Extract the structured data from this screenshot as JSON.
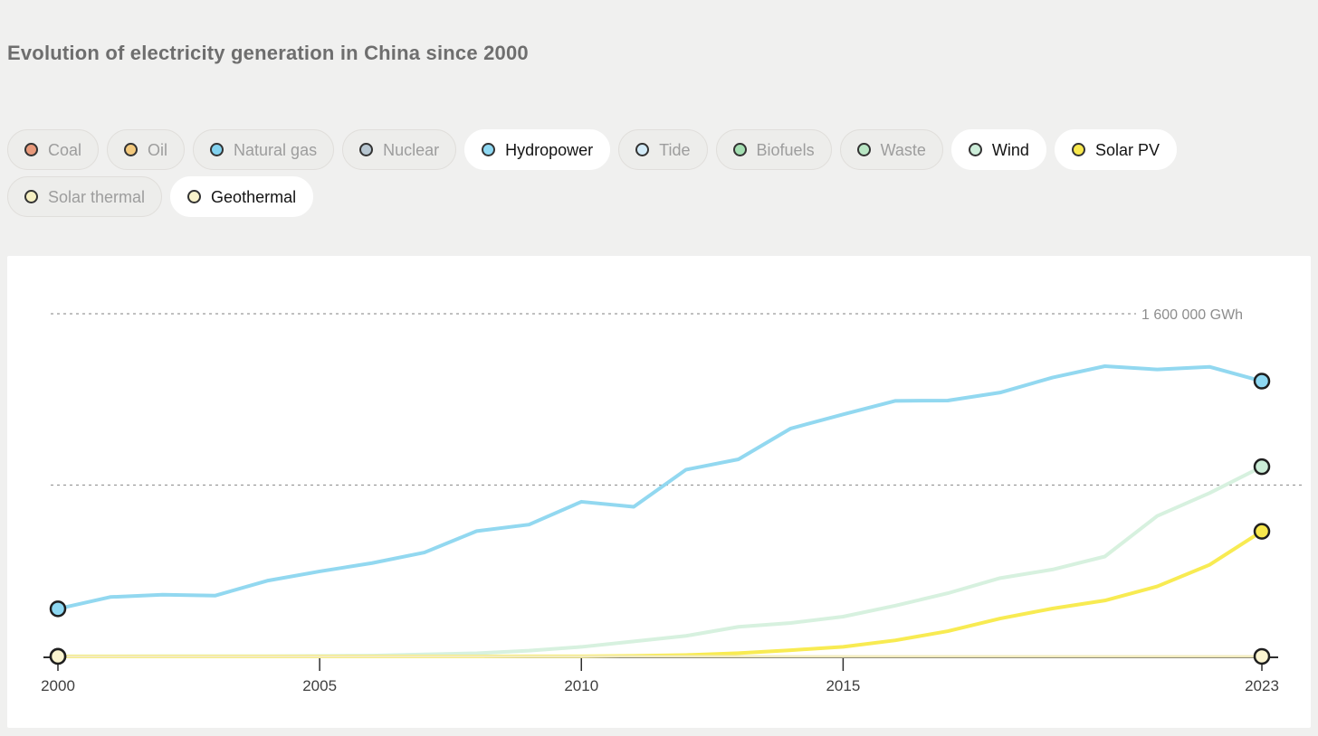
{
  "page": {
    "title": "Evolution of electricity generation in China since 2000"
  },
  "legend": {
    "items": [
      {
        "id": "coal",
        "label": "Coal",
        "active": false,
        "color": "#e8997b"
      },
      {
        "id": "oil",
        "label": "Oil",
        "active": false,
        "color": "#f3c97d"
      },
      {
        "id": "natural-gas",
        "label": "Natural gas",
        "active": false,
        "color": "#82d2ef"
      },
      {
        "id": "nuclear",
        "label": "Nuclear",
        "active": false,
        "color": "#b7c6d1"
      },
      {
        "id": "hydropower",
        "label": "Hydropower",
        "active": true,
        "color": "#8ed8f2"
      },
      {
        "id": "tide",
        "label": "Tide",
        "active": false,
        "color": "#d3ebf8"
      },
      {
        "id": "biofuels",
        "label": "Biofuels",
        "active": false,
        "color": "#a3deb1"
      },
      {
        "id": "waste",
        "label": "Waste",
        "active": false,
        "color": "#b9e6c4"
      },
      {
        "id": "wind",
        "label": "Wind",
        "active": true,
        "color": "#cdeeda"
      },
      {
        "id": "solar-pv",
        "label": "Solar PV",
        "active": true,
        "color": "#f8e84d"
      },
      {
        "id": "solar-thermal",
        "label": "Solar thermal",
        "active": false,
        "color": "#f5efc2"
      },
      {
        "id": "geothermal",
        "label": "Geothermal",
        "active": true,
        "color": "#f9f3cb"
      }
    ]
  },
  "chart_data": {
    "type": "line",
    "title": "Evolution of electricity generation in China since 2000",
    "unit": "GWh",
    "xlabel": "",
    "ylabel": "GWh",
    "x": [
      2000,
      2001,
      2002,
      2003,
      2004,
      2005,
      2006,
      2007,
      2008,
      2009,
      2010,
      2011,
      2012,
      2013,
      2014,
      2015,
      2016,
      2017,
      2018,
      2019,
      2020,
      2021,
      2022,
      2023
    ],
    "x_ticks": [
      2000,
      2005,
      2010,
      2015,
      2023
    ],
    "xlim": [
      2000,
      2023
    ],
    "ylim": [
      0,
      1870000
    ],
    "grid": "dashed-horizontal",
    "gridlines": [
      {
        "value": 1600000,
        "label": "1 600 000 GWh"
      },
      {
        "value": 800000,
        "label": ""
      }
    ],
    "legend_position": "top-pills",
    "series": [
      {
        "name": "Hydropower",
        "id": "hydropower",
        "line_color": "#92d8f0",
        "marker_color": "#8ed8f2",
        "line_width": 4,
        "values": [
          222400,
          277400,
          288000,
          283700,
          353500,
          397000,
          435800,
          485300,
          585200,
          615600,
          722200,
          698900,
          872100,
          920300,
          1064300,
          1130300,
          1193400,
          1194700,
          1232100,
          1302200,
          1355200,
          1340000,
          1352200,
          1285300
        ]
      },
      {
        "name": "Wind",
        "id": "wind",
        "line_color": "#d7f1df",
        "marker_color": "#cbedd7",
        "line_width": 4,
        "values": [
          615,
          720,
          810,
          1000,
          1290,
          2030,
          3870,
          9400,
          14800,
          26900,
          44620,
          70330,
          95980,
          138280,
          156080,
          185770,
          237070,
          295030,
          365800,
          405700,
          466500,
          655600,
          762700,
          885870
        ]
      },
      {
        "name": "Solar PV",
        "id": "solar-pv",
        "line_color": "#f8eb52",
        "marker_color": "#f8e84d",
        "line_width": 4,
        "values": [
          19,
          27,
          40,
          52,
          65,
          73,
          100,
          150,
          250,
          400,
          700,
          2600,
          6340,
          15450,
          29200,
          44780,
          75260,
          117840,
          176900,
          223800,
          261100,
          327000,
          427700,
          584200
        ]
      },
      {
        "name": "Geothermal",
        "id": "geothermal",
        "line_color": "#f3ecc0",
        "marker_color": "#faf4d0",
        "line_width": 3,
        "values": [
          100,
          100,
          100,
          100,
          100,
          100,
          100,
          100,
          100,
          150,
          150,
          150,
          150,
          150,
          150,
          150,
          150,
          150,
          150,
          150,
          150,
          150,
          200,
          200
        ]
      }
    ]
  }
}
